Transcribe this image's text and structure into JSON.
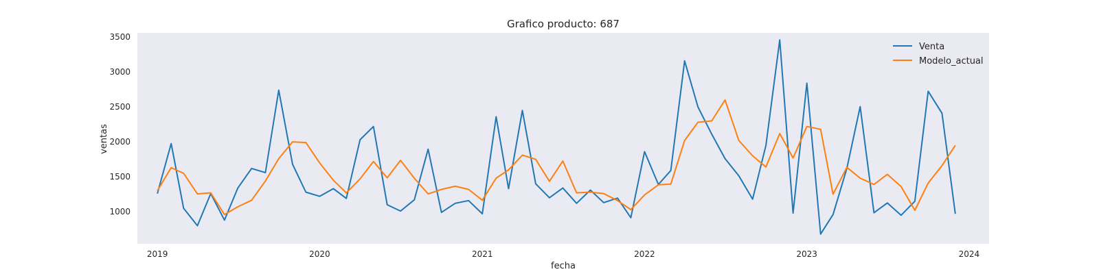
{
  "chart_data": {
    "type": "line",
    "title": "Grafico producto: 687",
    "xlabel": "fecha",
    "ylabel": "ventas",
    "x_start": "2019-01",
    "x_ticks": [
      "2019",
      "2020",
      "2021",
      "2022",
      "2023",
      "2024"
    ],
    "y_ticks": [
      "1000",
      "1500",
      "2000",
      "2500",
      "3000",
      "3500"
    ],
    "ylim": [
      540,
      3560
    ],
    "xlim": [
      "2018-11-17",
      "2024-02-15"
    ],
    "legend_position": "top-right",
    "grid": false,
    "background": "#eaeaf2",
    "series": [
      {
        "name": "Venta",
        "color": "#1f77b4",
        "values": [
          1260,
          1975,
          1050,
          800,
          1260,
          880,
          1340,
          1620,
          1560,
          2740,
          1680,
          1280,
          1220,
          1330,
          1190,
          2030,
          2220,
          1100,
          1010,
          1170,
          1895,
          990,
          1120,
          1160,
          970,
          2360,
          1330,
          2450,
          1400,
          1200,
          1340,
          1120,
          1310,
          1130,
          1195,
          915,
          1860,
          1390,
          1590,
          3160,
          2500,
          2110,
          1760,
          1515,
          1180,
          1950,
          3460,
          980,
          2840,
          680,
          960,
          1620,
          2505,
          985,
          1125,
          950,
          1150,
          2725,
          2410,
          970
        ]
      },
      {
        "name": "Modelo_actual",
        "color": "#ff7f0e",
        "values": [
          1300,
          1630,
          1550,
          1255,
          1270,
          960,
          1070,
          1165,
          1440,
          1760,
          2000,
          1990,
          1700,
          1450,
          1270,
          1470,
          1720,
          1485,
          1735,
          1480,
          1255,
          1320,
          1365,
          1320,
          1165,
          1480,
          1600,
          1810,
          1750,
          1435,
          1725,
          1270,
          1280,
          1260,
          1160,
          1030,
          1240,
          1385,
          1395,
          2020,
          2280,
          2300,
          2600,
          2020,
          1800,
          1640,
          2120,
          1770,
          2220,
          2180,
          1250,
          1635,
          1480,
          1390,
          1535,
          1360,
          1020,
          1410,
          1660,
          1950
        ]
      }
    ]
  }
}
